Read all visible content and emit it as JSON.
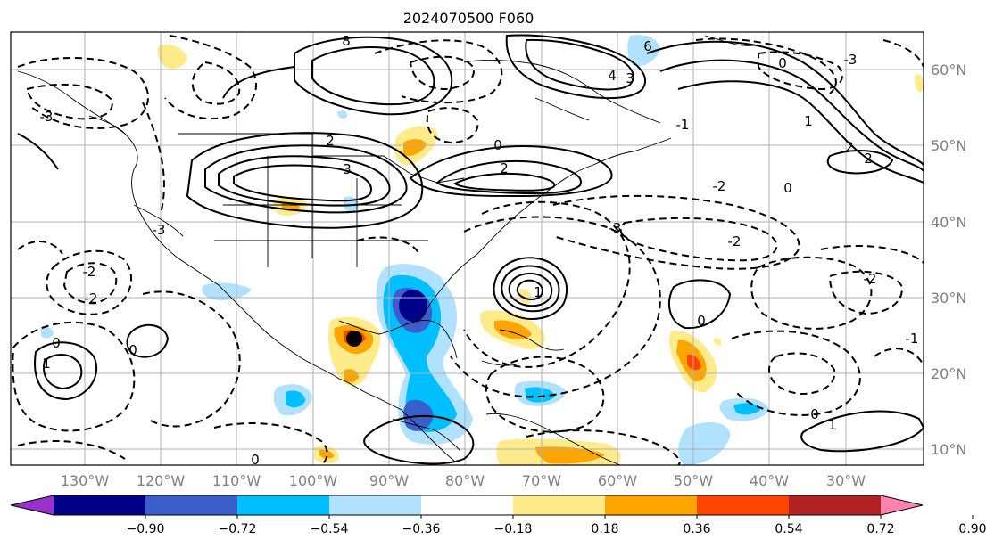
{
  "title": "2024070500 F060",
  "map": {
    "lon_labels": [
      "130°W",
      "120°W",
      "110°W",
      "100°W",
      "90°W",
      "80°W",
      "70°W",
      "60°W",
      "50°W",
      "40°W",
      "30°W"
    ],
    "lat_labels": [
      "60°N",
      "50°N",
      "40°N",
      "30°N",
      "20°N",
      "10°N"
    ],
    "contour_labels": [
      "8",
      "6",
      "4",
      "3",
      "2",
      "1",
      "0",
      "-1",
      "-2",
      "-3"
    ]
  },
  "colorbar": {
    "ticks": [
      "−0.90",
      "−0.72",
      "−0.54",
      "−0.36",
      "−0.18",
      "0.18",
      "0.36",
      "0.54",
      "0.72",
      "0.90"
    ],
    "colors": [
      "#9932cc",
      "#00008b",
      "#3a5fcd",
      "#00bfff",
      "#b0e2ff",
      "#ffffff",
      "#ffeb8a",
      "#ffa500",
      "#ff4500",
      "#b22222",
      "#ff83ae"
    ]
  },
  "colors": {
    "gridline": "#b0b0b0",
    "contour": "#000000",
    "marker": "#000000"
  }
}
